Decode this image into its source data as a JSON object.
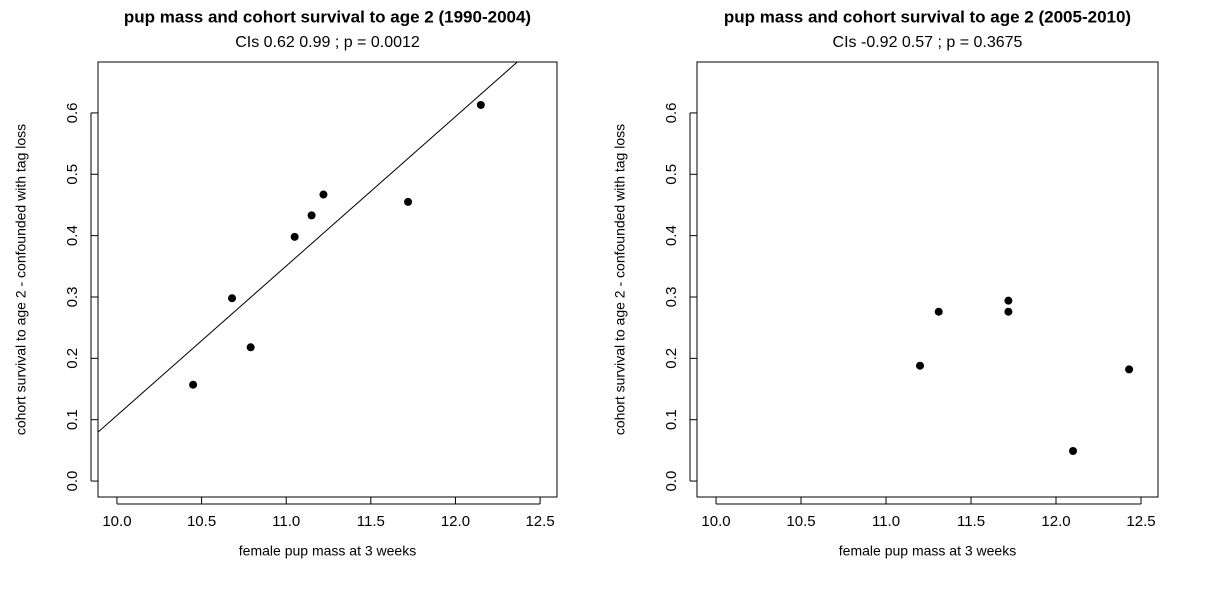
{
  "chart_data": [
    {
      "type": "scatter",
      "title": "pup mass and cohort survival to age 2 (1990-2004)",
      "subtitle": "CIs 0.62 0.99 ; p = 0.0012",
      "xlabel": "female pup mass at 3 weeks",
      "ylabel": "cohort survival to age 2 - confounded with tag loss",
      "x": [
        10.45,
        10.68,
        10.79,
        11.05,
        11.15,
        11.22,
        11.72,
        12.15
      ],
      "values": [
        0.157,
        0.298,
        0.218,
        0.398,
        0.433,
        0.467,
        0.455,
        0.613
      ],
      "color": "#000000",
      "trend_line": {
        "intercept": -2.328,
        "slope": 0.2435
      },
      "xlim": [
        9.888,
        12.6
      ],
      "ylim": [
        -0.026,
        0.683
      ],
      "xticks": [
        {
          "value": 10,
          "label": "10.0"
        },
        10.5,
        {
          "value": 11,
          "label": "11.0"
        },
        11.5,
        {
          "value": 12,
          "label": "12.0"
        },
        12.5
      ],
      "yticks": [
        {
          "value": 0,
          "label": "0.0"
        },
        0.1,
        0.2,
        0.3,
        0.4,
        0.5,
        0.6
      ]
    },
    {
      "type": "scatter",
      "title": "pup mass and cohort survival to age 2 (2005-2010)",
      "subtitle": "CIs -0.92  0.57 ; p = 0.3675",
      "xlabel": "female pup mass at 3 weeks",
      "ylabel": "cohort survival to age 2 - confounded with tag loss",
      "x": [
        11.2,
        11.31,
        11.72,
        11.72,
        12.1,
        12.43
      ],
      "values": [
        0.188,
        0.276,
        0.294,
        0.276,
        0.049,
        0.182
      ],
      "color": "#000000",
      "xlim": [
        9.888,
        12.6
      ],
      "ylim": [
        -0.026,
        0.683
      ],
      "xticks": [
        {
          "value": 10,
          "label": "10.0"
        },
        10.5,
        {
          "value": 11,
          "label": "11.0"
        },
        11.5,
        {
          "value": 12,
          "label": "12.0"
        },
        12.5
      ],
      "yticks": [
        {
          "value": 0,
          "label": "0.0"
        },
        0.1,
        0.2,
        0.3,
        0.4,
        0.5,
        0.6
      ]
    }
  ]
}
